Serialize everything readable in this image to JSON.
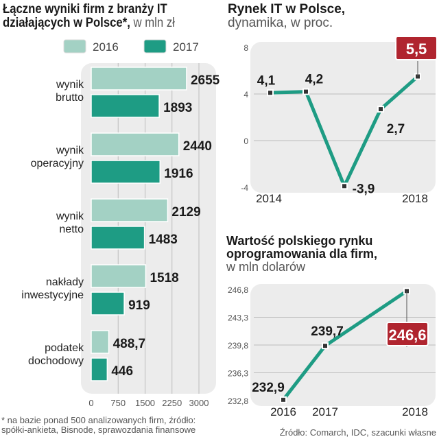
{
  "colors": {
    "c2016": "#a3d1c4",
    "c2017": "#1e9c84",
    "line": "#1e9c84",
    "highlight": "#b0252f",
    "plot_bg": "#ececec"
  },
  "footnote": [
    "* na bazie ponad 500 analizowanych firm, źródło:",
    "spółki-ankieta, Bisnode, sprawozdania finansowe"
  ],
  "source": "Źródło: Comarch, IDC, szacunki własne",
  "chart_data": [
    {
      "type": "bar",
      "orientation": "horizontal",
      "title_bold": [
        "Łączne wyniki firm z branży IT",
        "działających w Polsce*,"
      ],
      "title_light": "w mln zł",
      "categories": [
        [
          "wynik",
          "brutto"
        ],
        [
          "wynik",
          "operacyjny"
        ],
        [
          "wynik",
          "netto"
        ],
        [
          "nakłady",
          "inwestycyjne"
        ],
        [
          "podatek",
          "dochodowy"
        ]
      ],
      "series": [
        {
          "name": "2016",
          "values": [
            2655,
            2440,
            2129,
            1518,
            488.7
          ]
        },
        {
          "name": "2017",
          "values": [
            1893,
            1916,
            1483,
            919,
            446
          ]
        }
      ],
      "value_labels": [
        [
          "2655",
          "2440",
          "2129",
          "1518",
          "488,7"
        ],
        [
          "1893",
          "1916",
          "1483",
          "919",
          "446"
        ]
      ],
      "xlim": [
        0,
        3000
      ],
      "xticks": [
        "0",
        "750",
        "1500",
        "2250",
        "3000"
      ],
      "xtick_values": [
        0,
        750,
        1500,
        2250,
        3000
      ],
      "grid": true,
      "legend": "top"
    },
    {
      "type": "line",
      "title_bold": "Rynek IT w Polsce,",
      "title_light": "dynamika, w proc.",
      "x": [
        2014,
        2015,
        2016,
        2017,
        2018
      ],
      "values": [
        4.1,
        4.2,
        -3.9,
        2.7,
        5.5
      ],
      "labels": [
        "4,1",
        "4,2",
        "-3,9",
        "2,7",
        "5,5"
      ],
      "xticks": [
        "2014",
        "2018"
      ],
      "ylim": [
        -4,
        8
      ],
      "yticks": [
        "8",
        "4",
        "0",
        "-4"
      ],
      "ytick_values": [
        8,
        4,
        0,
        -4
      ],
      "grid": true,
      "highlight_last": true
    },
    {
      "type": "line",
      "title_bold": [
        "Wartość polskiego rynku",
        "oprogramowania dla firm,"
      ],
      "title_light": "w mln dolarów",
      "x": [
        2016,
        2017,
        2018
      ],
      "values": [
        232.9,
        239.7,
        246.6
      ],
      "labels": [
        "232,9",
        "239,7",
        "246,6"
      ],
      "xticks": [
        "2016",
        "2017",
        "2018"
      ],
      "ylim": [
        232.8,
        246.8
      ],
      "yticks": [
        "246,8",
        "243,3",
        "239,8",
        "236,3",
        "232,8"
      ],
      "ytick_values": [
        246.8,
        243.3,
        239.8,
        236.3,
        232.8
      ],
      "grid": true,
      "highlight_last": true
    }
  ]
}
